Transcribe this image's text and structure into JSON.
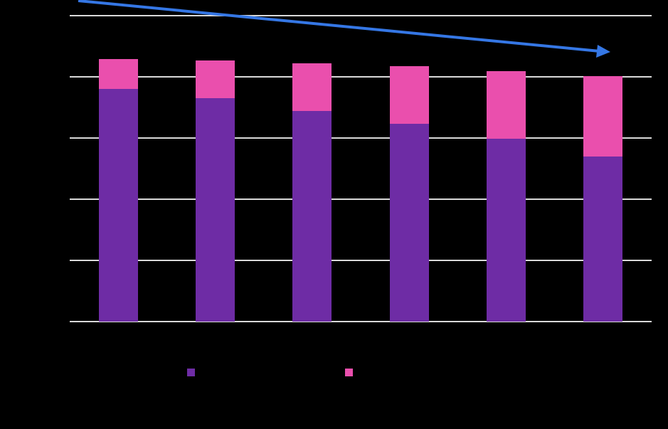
{
  "chart_data": {
    "type": "bar",
    "stacked": true,
    "title": "",
    "xlabel": "",
    "ylabel": "",
    "categories": [
      "",
      "",
      "",
      "",
      "",
      ""
    ],
    "series": [
      {
        "name": "",
        "color": "#6e2ca5",
        "values": [
          76.0,
          73.0,
          68.8,
          64.7,
          59.8,
          54.0
        ]
      },
      {
        "name": "",
        "color": "#ea4fad",
        "values": [
          9.8,
          12.3,
          15.6,
          18.8,
          22.1,
          26.2
        ]
      }
    ],
    "totals": [
      85.8,
      85.3,
      84.4,
      83.5,
      81.9,
      80.2
    ],
    "ylim": [
      0,
      100
    ],
    "yticks": [
      0,
      20,
      40,
      60,
      80,
      100
    ],
    "grid": true,
    "legend_position": "bottom",
    "annotations": [
      {
        "type": "arrow",
        "color": "#3577e5",
        "direction": "downward trend",
        "from": [
          110,
          1
        ],
        "to": [
          857,
          73
        ]
      }
    ],
    "background": "#000000",
    "gridline_color": "#d9d9d9"
  }
}
